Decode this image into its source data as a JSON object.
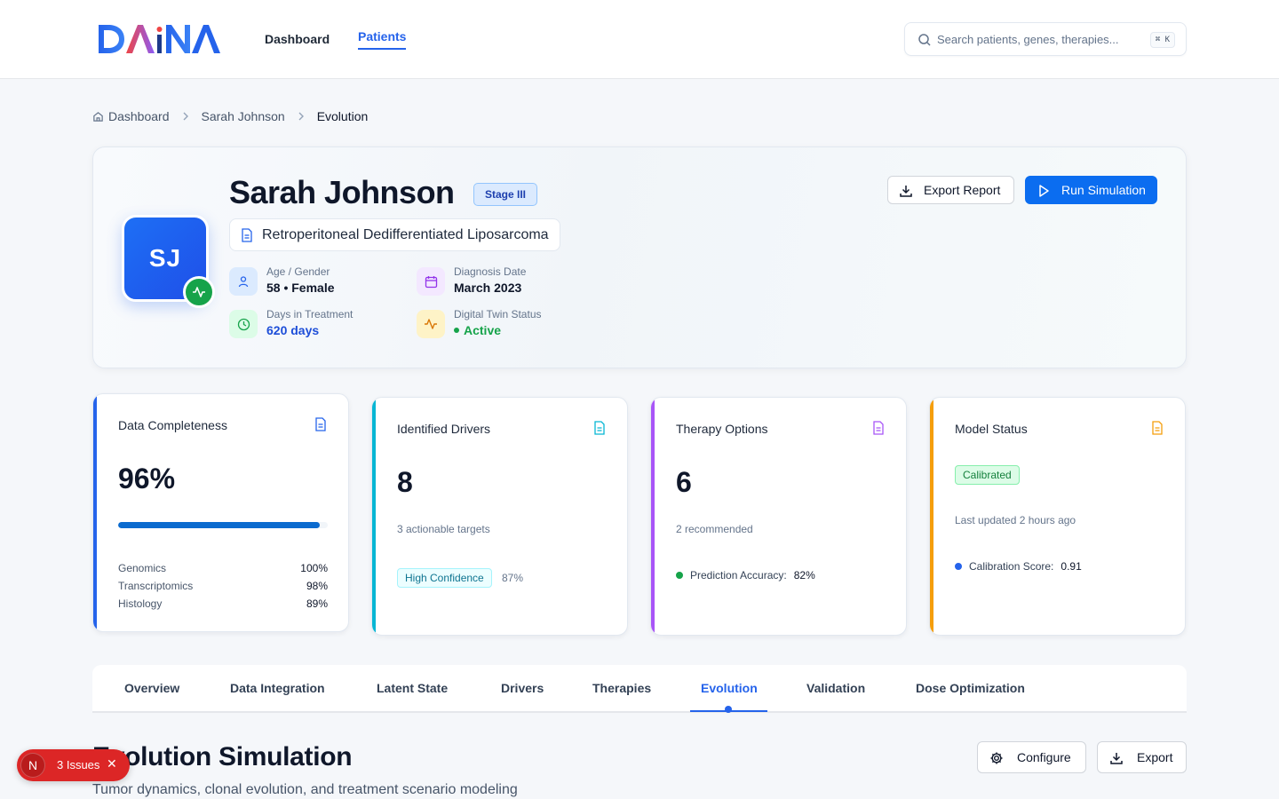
{
  "header": {
    "logo_text": "DAiNA",
    "nav": [
      {
        "label": "Dashboard",
        "active": false
      },
      {
        "label": "Patients",
        "active": true
      }
    ],
    "search": {
      "placeholder": "Search patients, genes, therapies...",
      "shortcut": "⌘ K"
    }
  },
  "breadcrumb": [
    "Dashboard",
    "Sarah Johnson",
    "Evolution"
  ],
  "patient": {
    "initials": "SJ",
    "name": "Sarah Johnson",
    "stage": "Stage III",
    "diagnosis": "Retroperitoneal Dedifferentiated Liposarcoma",
    "age_gender_label": "Age / Gender",
    "age_gender": "58 • Female",
    "diagnosis_date_label": "Diagnosis Date",
    "diagnosis_date": "March 2023",
    "days_label": "Days in Treatment",
    "days": "620 days",
    "twin_label": "Digital Twin Status",
    "twin_status": "Active",
    "export_label": "Export Report",
    "run_label": "Run Simulation"
  },
  "cards": {
    "completeness": {
      "title": "Data Completeness",
      "value": "96%",
      "progress": 96,
      "rows": [
        {
          "label": "Genomics",
          "value": "100%"
        },
        {
          "label": "Transcriptomics",
          "value": "98%"
        },
        {
          "label": "Histology",
          "value": "89%"
        }
      ]
    },
    "drivers": {
      "title": "Identified Drivers",
      "value": "8",
      "sub": "3 actionable targets",
      "chip": "High Confidence",
      "chip_value": "87%"
    },
    "therapy": {
      "title": "Therapy Options",
      "value": "6",
      "sub": "2 recommended",
      "metric_label": "Prediction Accuracy:",
      "metric_value": "82%"
    },
    "model": {
      "title": "Model Status",
      "chip": "Calibrated",
      "sub": "Last updated 2 hours ago",
      "metric_label": "Calibration Score:",
      "metric_value": "0.91"
    }
  },
  "tabs": [
    {
      "label": "Overview"
    },
    {
      "label": "Data Integration"
    },
    {
      "label": "Latent State"
    },
    {
      "label": "Drivers"
    },
    {
      "label": "Therapies"
    },
    {
      "label": "Evolution",
      "active": true
    },
    {
      "label": "Validation"
    },
    {
      "label": "Dose Optimization"
    }
  ],
  "section": {
    "title": "Evolution Simulation",
    "subtitle": "Tumor dynamics, clonal evolution, and treatment scenario modeling",
    "configure_label": "Configure",
    "export_label": "Export"
  },
  "issues": {
    "badge": "N",
    "label": "3 Issues"
  },
  "colors": {
    "accent": "#2563eb",
    "blue_bar": "#2563eb",
    "cyan_bar": "#06b6d4",
    "purple_bar": "#a855f7",
    "orange_bar": "#f59e0b",
    "success": "#16a34a",
    "danger": "#dc2626"
  }
}
